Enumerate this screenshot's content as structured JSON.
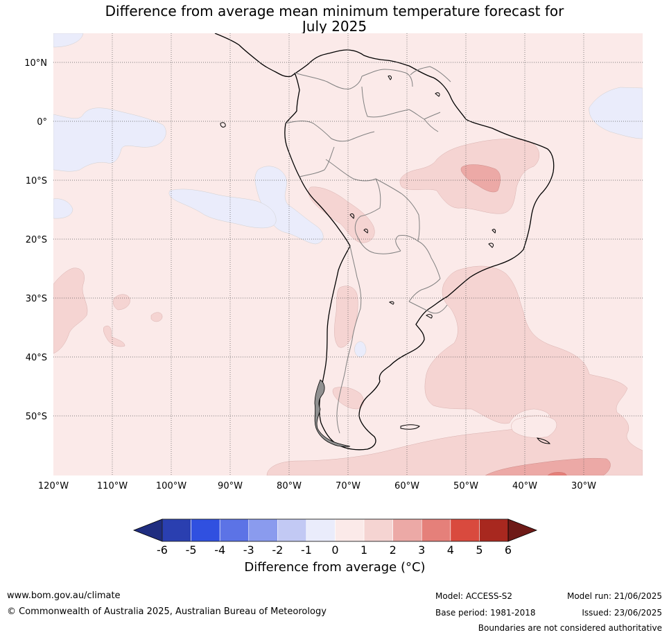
{
  "title": {
    "line1": "Difference from average mean minimum temperature forecast for",
    "line2": "July 2025"
  },
  "map": {
    "lat_labels": [
      "10°N",
      "0°",
      "10°S",
      "20°S",
      "30°S",
      "40°S",
      "50°S"
    ],
    "lon_labels": [
      "120°W",
      "110°W",
      "100°W",
      "90°W",
      "80°W",
      "70°W",
      "60°W",
      "50°W",
      "40°W",
      "30°W"
    ]
  },
  "colorbar": {
    "title": "Difference from average (°C)",
    "ticks": [
      "-6",
      "-5",
      "-4",
      "-3",
      "-2",
      "-1",
      "0",
      "1",
      "2",
      "3",
      "4",
      "5",
      "6"
    ],
    "colors": [
      "#1f2d80",
      "#2a3fb0",
      "#3050e0",
      "#5c73e6",
      "#8a9bee",
      "#c2c9f4",
      "#eaecfb",
      "#fbeae9",
      "#f5d4d2",
      "#eca9a6",
      "#e5807a",
      "#d94a3e",
      "#a8281f",
      "#6e1a17"
    ]
  },
  "footer": {
    "website": "www.bom.gov.au/climate",
    "copyright": "© Commonwealth of Australia 2025, Australian Bureau of Meteorology",
    "model": "Model: ACCESS-S2",
    "base_period": "Base period: 1981-2018",
    "model_run": "Model run: 21/06/2025",
    "issued": "Issued: 23/06/2025",
    "disclaimer": "Boundaries are not considered authoritative"
  }
}
